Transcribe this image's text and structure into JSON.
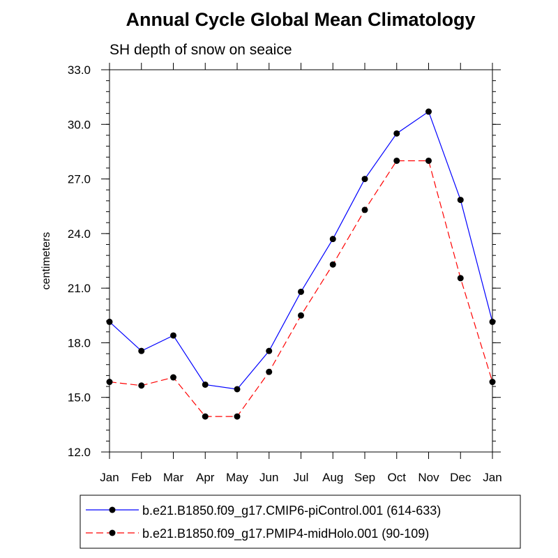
{
  "chart_data": {
    "type": "line",
    "title": "Annual Cycle Global Mean Climatology",
    "subtitle": "SH depth of snow on seaice",
    "ylabel": "centimeters",
    "xlabel": "",
    "categories": [
      "Jan",
      "Feb",
      "Mar",
      "Apr",
      "May",
      "Jun",
      "Jul",
      "Aug",
      "Sep",
      "Oct",
      "Nov",
      "Dec",
      "Jan"
    ],
    "ylim": [
      12.0,
      33.0
    ],
    "yticks": [
      12.0,
      15.0,
      18.0,
      21.0,
      24.0,
      27.0,
      30.0,
      33.0
    ],
    "ytick_labels": [
      "12.0",
      "15.0",
      "18.0",
      "21.0",
      "24.0",
      "27.0",
      "30.0",
      "33.0"
    ],
    "yminor_step": 0.6,
    "legend_position": "bottom",
    "series": [
      {
        "name": "b.e21.B1850.f09_g17.CMIP6-piControl.001 (614-633)",
        "color": "#0000ff",
        "style": "solid",
        "marker": "filled-circle",
        "values": [
          19.15,
          17.55,
          18.4,
          15.7,
          15.45,
          17.55,
          20.8,
          23.7,
          27.0,
          29.5,
          30.7,
          25.85,
          19.15
        ]
      },
      {
        "name": "b.e21.B1850.f09_g17.PMIP4-midHolo.001 (90-109)",
        "color": "#ff0000",
        "style": "dashed",
        "marker": "filled-circle",
        "values": [
          15.85,
          15.65,
          16.1,
          13.95,
          13.95,
          16.4,
          19.5,
          22.3,
          25.3,
          28.0,
          28.0,
          21.55,
          15.85
        ]
      }
    ]
  }
}
